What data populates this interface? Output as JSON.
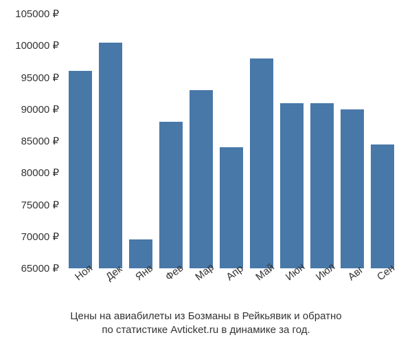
{
  "chart": {
    "type": "bar",
    "background_color": "#ffffff",
    "bar_color": "#4878a8",
    "text_color": "#333333",
    "currency_suffix": " ₽",
    "y_axis": {
      "min": 65000,
      "max": 105000,
      "tick_step": 5000,
      "ticks": [
        65000,
        70000,
        75000,
        80000,
        85000,
        90000,
        95000,
        100000,
        105000
      ],
      "label_fontsize": 15
    },
    "x_axis": {
      "labels": [
        "Ноя",
        "Дек",
        "Янв",
        "Фев",
        "Мар",
        "Апр",
        "Май",
        "Июн",
        "Июл",
        "Авг",
        "Сен"
      ],
      "label_fontsize": 15,
      "label_rotation_deg": -38
    },
    "values": [
      96000,
      100500,
      69500,
      88000,
      93000,
      84000,
      98000,
      91000,
      91000,
      90000,
      84500
    ],
    "bar_width_pct": 88,
    "caption_line1": "Цены на авиабилеты из Бозманы в Рейкьявик и обратно",
    "caption_line2": "по статистике Avticket.ru в динамике за год.",
    "caption_fontsize": 15
  }
}
